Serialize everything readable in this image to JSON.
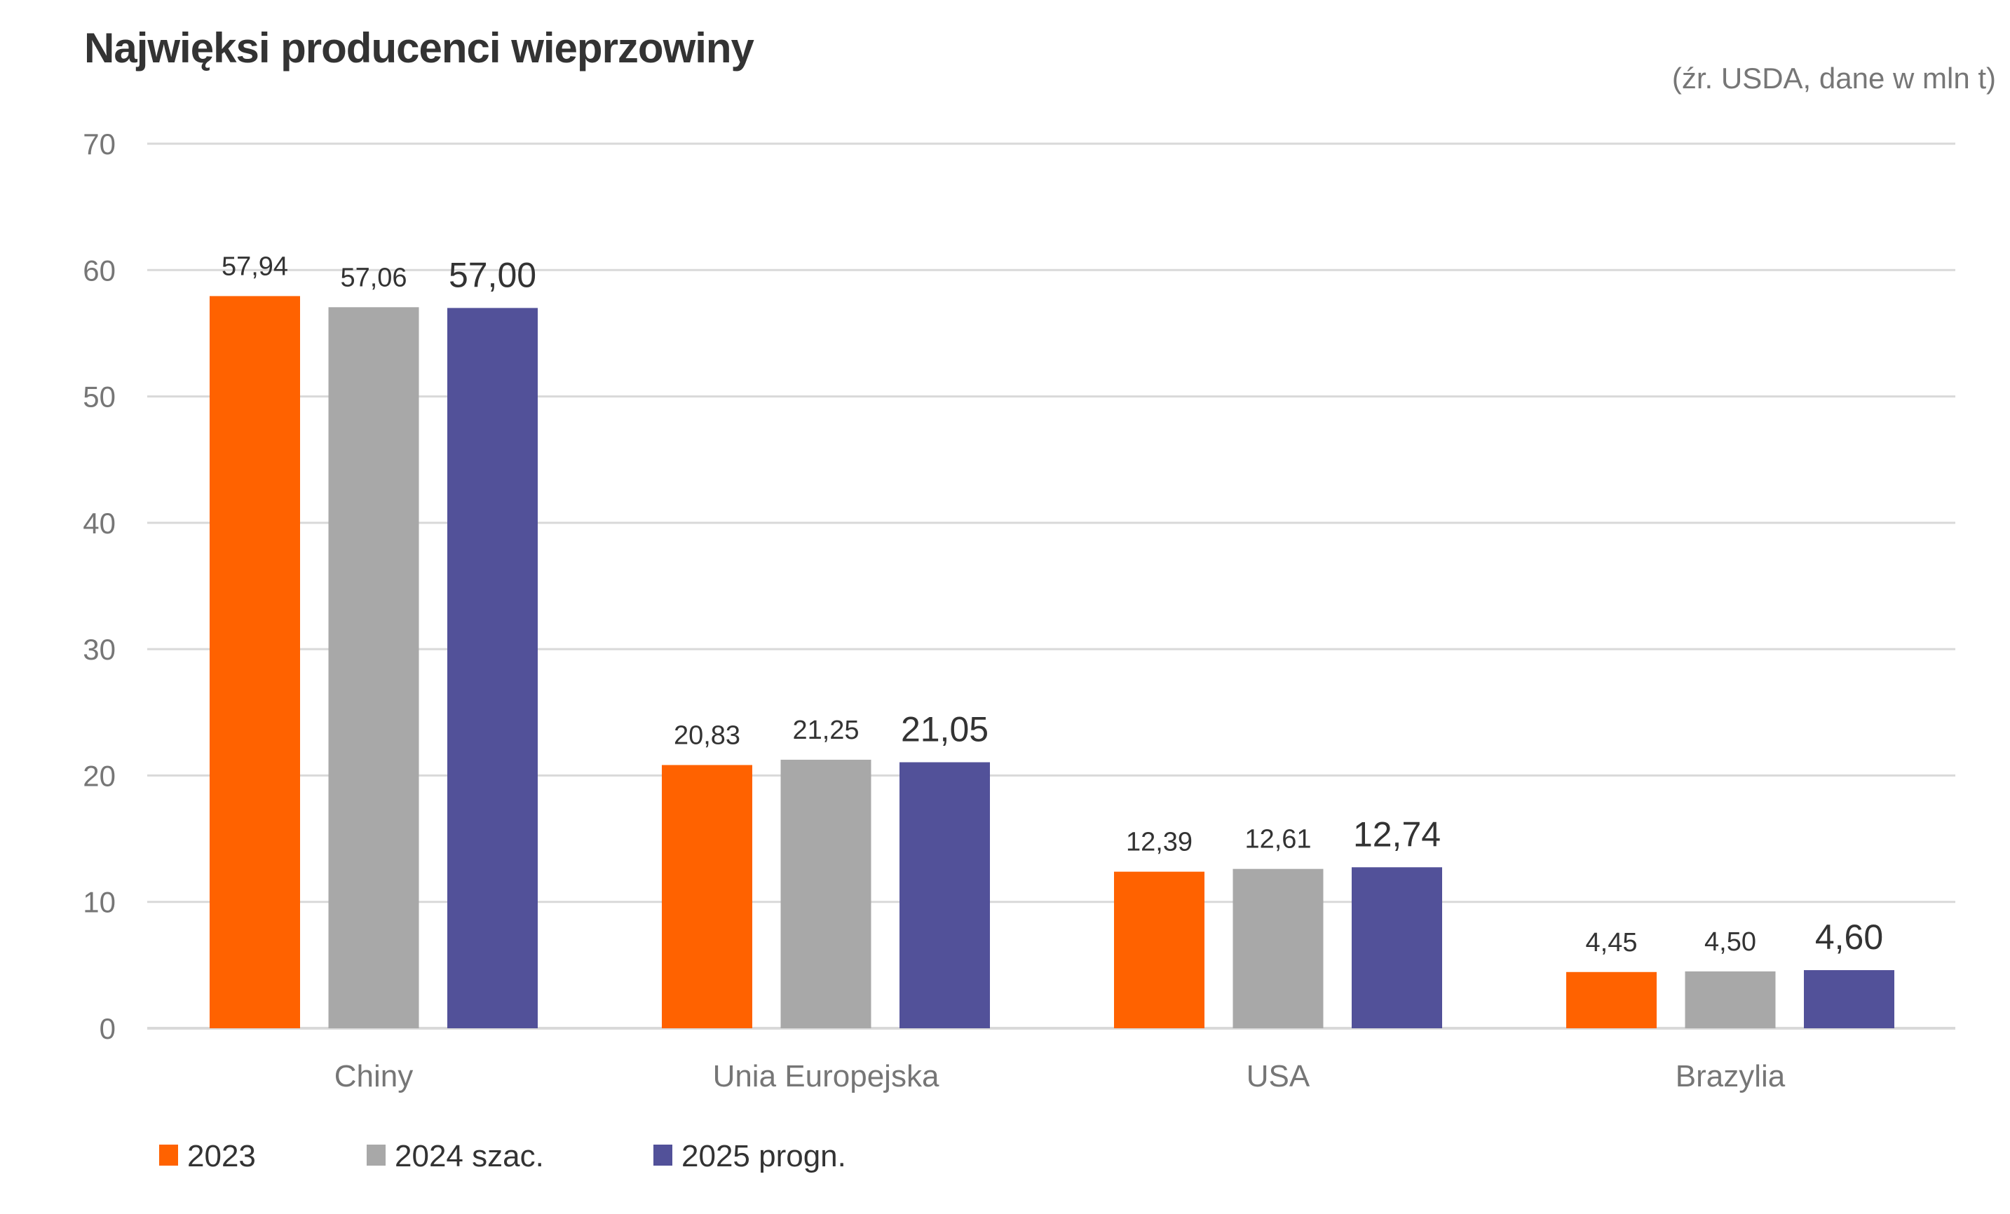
{
  "chart_data": {
    "type": "bar",
    "title": "Najwięksi producenci wieprzowiny",
    "subtitle": "(źr. USDA, dane w mln t)",
    "xlabel": "",
    "ylabel": "",
    "ylim": [
      0,
      70
    ],
    "yticks": [
      0,
      10,
      20,
      30,
      40,
      50,
      60,
      70
    ],
    "ytick_labels": [
      "0",
      "10",
      "20",
      "30",
      "40",
      "50",
      "60",
      "70"
    ],
    "grid": true,
    "legend_position": "bottom-left",
    "categories": [
      "Chiny",
      "Unia Europejska",
      "USA",
      "Brazylia"
    ],
    "series": [
      {
        "name": "2023",
        "color": "#FF6200",
        "values": [
          57.94,
          20.83,
          12.39,
          4.45
        ],
        "labels": [
          "57,94",
          "20,83",
          "12,39",
          "4,45"
        ]
      },
      {
        "name": "2024 szac.",
        "color": "#A8A8A8",
        "values": [
          57.06,
          21.25,
          12.61,
          4.5
        ],
        "labels": [
          "57,06",
          "21,25",
          "12,61",
          "4,50"
        ]
      },
      {
        "name": "2025 progn.",
        "color": "#525199",
        "values": [
          57.0,
          21.05,
          12.74,
          4.6
        ],
        "labels": [
          "57,00",
          "21,05",
          "12,74",
          "4,60"
        ]
      }
    ]
  },
  "colors": {
    "grid": "#D9D9D9",
    "axis_text": "#767676",
    "label_text": "#333333"
  }
}
